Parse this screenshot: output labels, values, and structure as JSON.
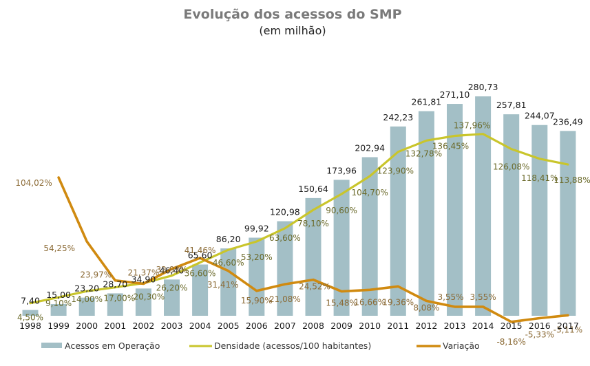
{
  "chart_data": {
    "type": "bar",
    "title": "Evolução dos acessos do SMP",
    "subtitle": "(em milhão)",
    "xlabel": "",
    "ylabel": "",
    "grid": false,
    "legend_position": "bottom",
    "categories": [
      "1998",
      "1999",
      "2000",
      "2001",
      "2002",
      "2003",
      "2004",
      "2005",
      "2006",
      "2007",
      "2008",
      "2009",
      "2010",
      "2011",
      "2012",
      "2013",
      "2014",
      "2015",
      "2016",
      "2017"
    ],
    "series": [
      {
        "name": "Acessos em Operação",
        "type": "bar",
        "color": "#A3BFC6",
        "values": [
          7.4,
          15.0,
          23.2,
          28.7,
          34.9,
          46.4,
          65.6,
          86.2,
          99.92,
          120.98,
          150.64,
          173.96,
          202.94,
          242.23,
          261.81,
          271.1,
          280.73,
          257.81,
          244.07,
          236.49
        ],
        "labels": [
          "7,40",
          "15,00",
          "23,20",
          "28,70",
          "34,90",
          "46,40",
          "65,60",
          "86,20",
          "99,92",
          "120,98",
          "150,64",
          "173,96",
          "202,94",
          "242,23",
          "261,81",
          "271,10",
          "280,73",
          "257,81",
          "244,07",
          "236,49"
        ]
      },
      {
        "name": "Densidade (acessos/100 habitantes)",
        "type": "line",
        "color": "#C9C52B",
        "values": [
          4.5,
          9.1,
          14.0,
          17.0,
          20.3,
          26.2,
          36.6,
          46.6,
          53.2,
          63.6,
          78.1,
          90.6,
          104.7,
          123.9,
          132.78,
          136.45,
          137.96,
          126.08,
          118.41,
          113.88
        ],
        "labels": [
          "4,50%",
          "9,10%",
          "14,00%",
          "17,00%",
          "20,30%",
          "26,20%",
          "36,60%",
          "46,60%",
          "53,20%",
          "63,60%",
          "78,10%",
          "90,60%",
          "104,70%",
          "123,90%",
          "132,78%",
          "136,45%",
          "137,96%",
          "126,08%",
          "118,41%",
          "113,88%"
        ]
      },
      {
        "name": "Variação",
        "type": "line",
        "color": "#D08A10",
        "values": [
          null,
          104.02,
          54.25,
          23.97,
          21.37,
          32.93,
          41.46,
          31.41,
          15.9,
          21.08,
          24.52,
          15.48,
          16.66,
          19.36,
          8.08,
          3.55,
          3.55,
          -8.16,
          -5.33,
          -3.11
        ],
        "labels": [
          "",
          "104,02%",
          "54,25%",
          "23,97%",
          "21,37%",
          "32,93%",
          "41,46%",
          "31,41%",
          "15,90%",
          "21,08%",
          "24,52%",
          "15,48%",
          "16,66%",
          "19,36%",
          "8,08%",
          "3,55%",
          "3,55%",
          "-8,16%",
          "-5,33%",
          "-3,11%"
        ]
      }
    ]
  }
}
